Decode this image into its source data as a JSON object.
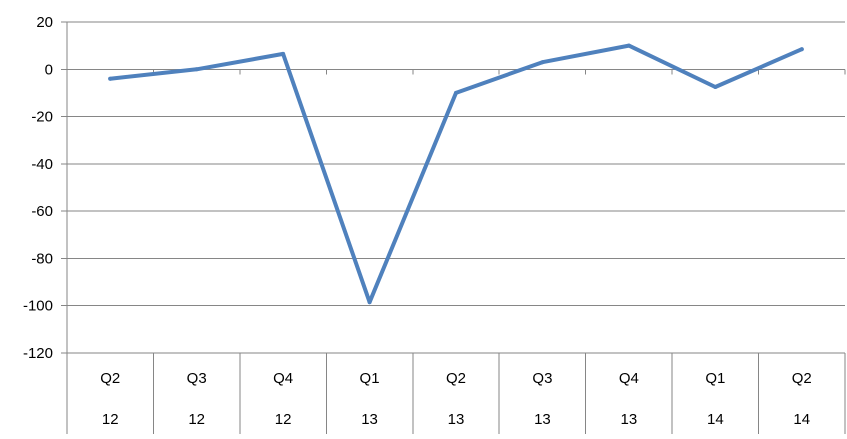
{
  "chart_data": {
    "type": "line",
    "categories": [
      [
        "Q2",
        "12"
      ],
      [
        "Q3",
        "12"
      ],
      [
        "Q4",
        "12"
      ],
      [
        "Q1",
        "13"
      ],
      [
        "Q2",
        "13"
      ],
      [
        "Q3",
        "13"
      ],
      [
        "Q4",
        "13"
      ],
      [
        "Q1",
        "14"
      ],
      [
        "Q2",
        "14"
      ]
    ],
    "series": [
      {
        "values": [
          -4,
          0,
          6.5,
          -98.5,
          -10,
          3,
          10,
          -7.5,
          8.5
        ],
        "color": "#4F81BD"
      }
    ],
    "ylim": [
      -120,
      20
    ],
    "yticks": [
      20,
      0,
      -20,
      -40,
      -60,
      -80,
      -100,
      -120
    ],
    "grid": true,
    "legend": "none",
    "title": "",
    "xlabel": "",
    "ylabel": ""
  }
}
